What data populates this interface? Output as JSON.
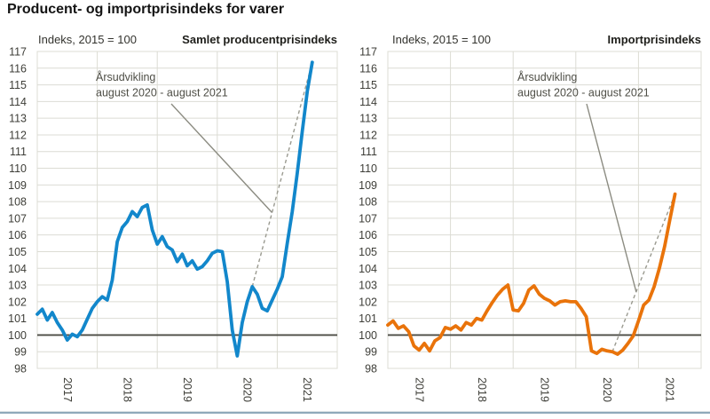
{
  "page": {
    "title": "Producent- og importprisindeks for varer"
  },
  "colors": {
    "producer_line": "#1287cb",
    "import_line": "#e9730a",
    "grid": "#dcdcd4",
    "baseline": "#4b4b44",
    "dashed_yoy": "#9a9a90",
    "pointer": "#8c8c82",
    "tick_text": "#3e3e38",
    "annotation_text": "#4e4e46",
    "divider": "#8fa9ba"
  },
  "chart_data": [
    {
      "type": "line",
      "title": "Samlet producentprisindeks",
      "axis_note": "Indeks, 2015 = 100",
      "series_name": "Samlet producentprisindeks",
      "color": "#1287cb",
      "frequency": "monthly",
      "x_start": "2017-01",
      "x_end": "2021-08",
      "x_axis_end": "2022-01",
      "x_year_labels": [
        "2017",
        "2018",
        "2019",
        "2020",
        "2021"
      ],
      "ylim": [
        98,
        117
      ],
      "y_tick_step": 1,
      "baseline_value": 100,
      "grid": true,
      "legend": "none",
      "annotation": {
        "line1": "Årsudvikling",
        "line2": "august 2020 - august 2021",
        "from": "2020-08",
        "to": "2021-08"
      },
      "values": [
        101.25,
        101.55,
        100.9,
        101.35,
        100.75,
        100.3,
        99.7,
        100.05,
        99.9,
        100.3,
        100.95,
        101.6,
        102.0,
        102.3,
        102.1,
        103.3,
        105.6,
        106.45,
        106.8,
        107.4,
        107.1,
        107.65,
        107.8,
        106.3,
        105.45,
        105.9,
        105.3,
        105.1,
        104.4,
        104.85,
        104.15,
        104.45,
        103.95,
        104.1,
        104.45,
        104.9,
        105.05,
        105.0,
        103.2,
        100.3,
        98.75,
        100.75,
        102.0,
        102.9,
        102.45,
        101.6,
        101.45,
        102.1,
        102.75,
        103.5,
        105.5,
        107.4,
        109.7,
        112.2,
        114.6,
        116.35
      ]
    },
    {
      "type": "line",
      "title": "Importprisindeks",
      "axis_note": "Indeks, 2015 = 100",
      "series_name": "Importprisindeks",
      "color": "#e9730a",
      "frequency": "monthly",
      "x_start": "2017-01",
      "x_end": "2021-08",
      "x_axis_end": "2022-01",
      "x_year_labels": [
        "2017",
        "2018",
        "2019",
        "2020",
        "2021"
      ],
      "ylim": [
        98,
        117
      ],
      "y_tick_step": 1,
      "baseline_value": 100,
      "grid": true,
      "legend": "none",
      "annotation": {
        "line1": "Årsudvikling",
        "line2": "august 2020 - august 2021",
        "from": "2020-08",
        "to": "2021-08"
      },
      "values": [
        100.6,
        100.85,
        100.4,
        100.55,
        100.2,
        99.35,
        99.1,
        99.5,
        99.05,
        99.65,
        99.85,
        100.45,
        100.35,
        100.55,
        100.3,
        100.75,
        100.6,
        101.0,
        100.9,
        101.45,
        101.95,
        102.4,
        102.75,
        103.0,
        101.5,
        101.45,
        101.9,
        102.7,
        102.95,
        102.45,
        102.2,
        102.05,
        101.8,
        102.0,
        102.05,
        102.0,
        102.0,
        101.6,
        101.1,
        99.05,
        98.9,
        99.15,
        99.05,
        99.0,
        98.85,
        99.1,
        99.5,
        99.95,
        100.85,
        101.8,
        102.1,
        102.9,
        104.0,
        105.3,
        106.9,
        108.45
      ]
    }
  ]
}
